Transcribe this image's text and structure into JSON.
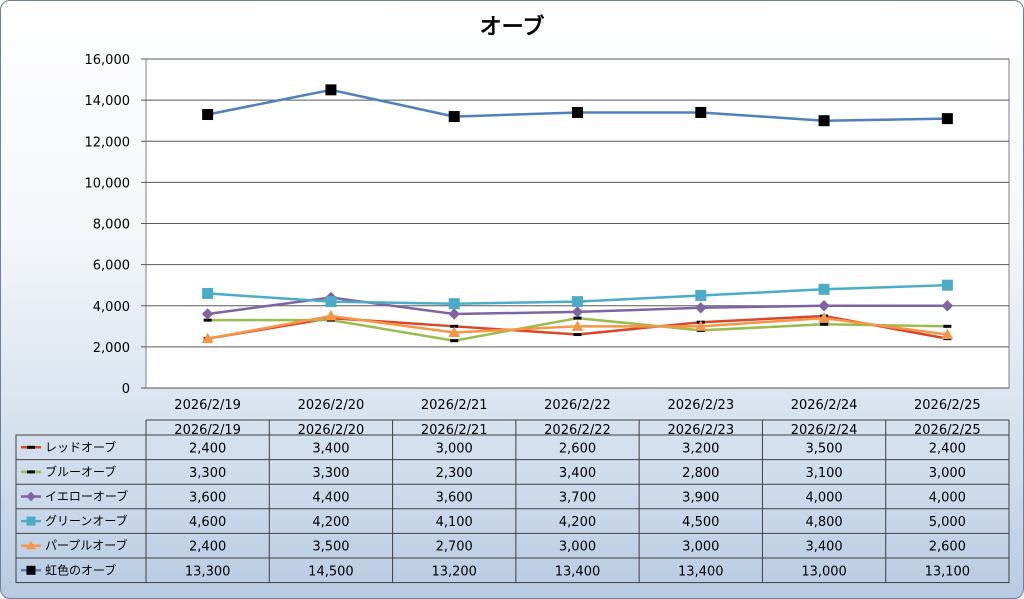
{
  "chart_data": {
    "type": "line",
    "title": "オーブ",
    "xlabel": "",
    "ylabel": "",
    "ylim": [
      0,
      16000
    ],
    "y_ticks": [
      "0",
      "2,000",
      "4,000",
      "6,000",
      "8,000",
      "10,000",
      "12,000",
      "14,000",
      "16,000"
    ],
    "categories": [
      "2026/2/19",
      "2026/2/20",
      "2026/2/21",
      "2026/2/22",
      "2026/2/23",
      "2026/2/24",
      "2026/2/25"
    ],
    "grid": true,
    "legend": "data-table",
    "series": [
      {
        "name": "レッドオーブ",
        "color": "#d9472b",
        "marker": "dash",
        "values": [
          2400,
          3400,
          3000,
          2600,
          3200,
          3500,
          2400
        ],
        "labels": [
          "2,400",
          "3,400",
          "3,000",
          "2,600",
          "3,200",
          "3,500",
          "2,400"
        ]
      },
      {
        "name": "ブルーオーブ",
        "color": "#98bd4a",
        "marker": "dash",
        "values": [
          3300,
          3300,
          2300,
          3400,
          2800,
          3100,
          3000
        ],
        "labels": [
          "3,300",
          "3,300",
          "2,300",
          "3,400",
          "2,800",
          "3,100",
          "3,000"
        ]
      },
      {
        "name": "イエローオーブ",
        "color": "#8064a2",
        "marker": "diamond",
        "values": [
          3600,
          4400,
          3600,
          3700,
          3900,
          4000,
          4000
        ],
        "labels": [
          "3,600",
          "4,400",
          "3,600",
          "3,700",
          "3,900",
          "4,000",
          "4,000"
        ]
      },
      {
        "name": "グリーンオーブ",
        "color": "#4aacc6",
        "marker": "square",
        "values": [
          4600,
          4200,
          4100,
          4200,
          4500,
          4800,
          5000
        ],
        "labels": [
          "4,600",
          "4,200",
          "4,100",
          "4,200",
          "4,500",
          "4,800",
          "5,000"
        ]
      },
      {
        "name": "パープルオーブ",
        "color": "#f79646",
        "marker": "triangle",
        "values": [
          2400,
          3500,
          2700,
          3000,
          3000,
          3400,
          2600
        ],
        "labels": [
          "2,400",
          "3,500",
          "2,700",
          "3,000",
          "3,000",
          "3,400",
          "2,600"
        ]
      },
      {
        "name": "虹色のオーブ",
        "color": "#4f81bd",
        "marker": "square-black",
        "values": [
          13300,
          14500,
          13200,
          13400,
          13400,
          13000,
          13100
        ],
        "labels": [
          "13,300",
          "14,500",
          "13,200",
          "13,400",
          "13,400",
          "13,000",
          "13,100"
        ]
      }
    ]
  }
}
